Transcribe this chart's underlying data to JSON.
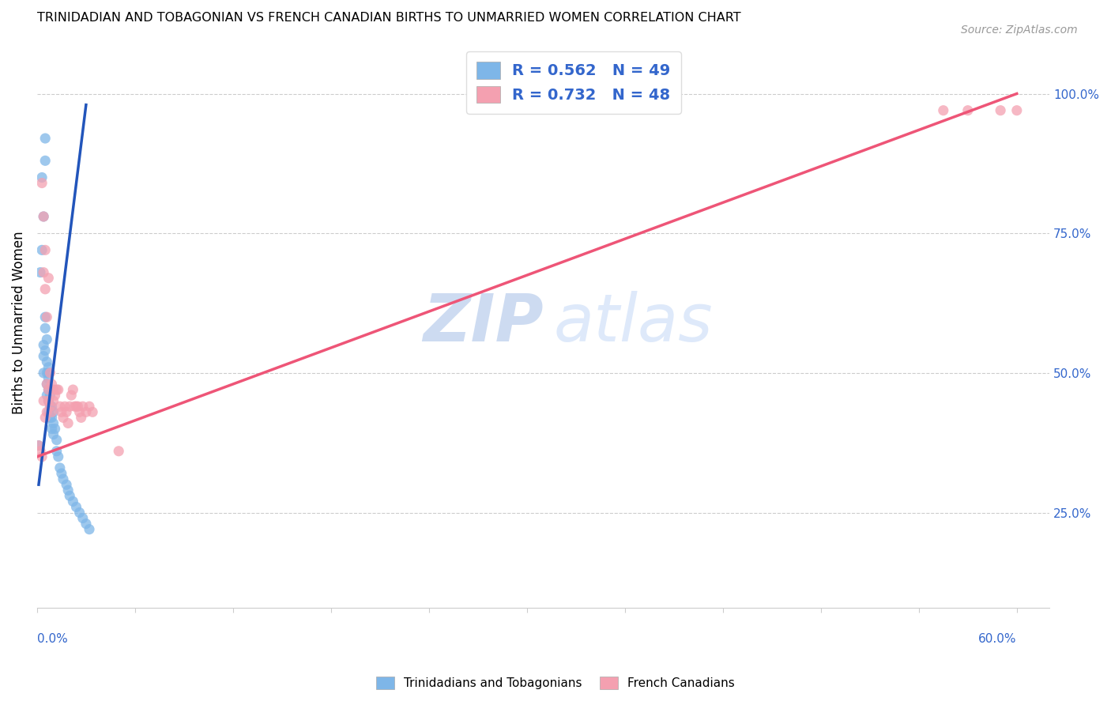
{
  "title": "TRINIDADIAN AND TOBAGONIAN VS FRENCH CANADIAN BIRTHS TO UNMARRIED WOMEN CORRELATION CHART",
  "source": "Source: ZipAtlas.com",
  "ylabel": "Births to Unmarried Women",
  "right_yticks": [
    "100.0%",
    "75.0%",
    "50.0%",
    "25.0%"
  ],
  "right_ytick_vals": [
    1.0,
    0.75,
    0.5,
    0.25
  ],
  "legend_line1": "R = 0.562   N = 49",
  "legend_line2": "R = 0.732   N = 48",
  "legend_label1": "Trinidadians and Tobagonians",
  "legend_label2": "French Canadians",
  "blue_color": "#7EB6E8",
  "pink_color": "#F4A0B0",
  "blue_scatter_x": [
    0.001,
    0.002,
    0.003,
    0.003,
    0.004,
    0.004,
    0.004,
    0.004,
    0.005,
    0.005,
    0.005,
    0.005,
    0.005,
    0.006,
    0.006,
    0.006,
    0.006,
    0.006,
    0.007,
    0.007,
    0.007,
    0.007,
    0.007,
    0.007,
    0.008,
    0.008,
    0.008,
    0.009,
    0.009,
    0.009,
    0.01,
    0.01,
    0.01,
    0.011,
    0.012,
    0.012,
    0.013,
    0.014,
    0.015,
    0.016,
    0.018,
    0.019,
    0.02,
    0.022,
    0.024,
    0.026,
    0.028,
    0.03,
    0.032
  ],
  "blue_scatter_y": [
    0.37,
    0.68,
    0.72,
    0.85,
    0.78,
    0.55,
    0.53,
    0.5,
    0.92,
    0.88,
    0.6,
    0.58,
    0.54,
    0.56,
    0.52,
    0.5,
    0.48,
    0.46,
    0.51,
    0.5,
    0.49,
    0.47,
    0.45,
    0.43,
    0.46,
    0.44,
    0.42,
    0.44,
    0.42,
    0.4,
    0.43,
    0.41,
    0.39,
    0.4,
    0.38,
    0.36,
    0.35,
    0.33,
    0.32,
    0.31,
    0.3,
    0.29,
    0.28,
    0.27,
    0.26,
    0.25,
    0.24,
    0.23,
    0.22
  ],
  "blue_line_x": [
    0.001,
    0.03
  ],
  "blue_line_y": [
    0.3,
    0.98
  ],
  "pink_scatter_x": [
    0.001,
    0.002,
    0.003,
    0.003,
    0.004,
    0.004,
    0.004,
    0.005,
    0.005,
    0.005,
    0.006,
    0.006,
    0.006,
    0.007,
    0.007,
    0.007,
    0.008,
    0.008,
    0.009,
    0.009,
    0.01,
    0.01,
    0.011,
    0.012,
    0.013,
    0.014,
    0.015,
    0.016,
    0.017,
    0.018,
    0.019,
    0.02,
    0.021,
    0.022,
    0.023,
    0.024,
    0.025,
    0.026,
    0.027,
    0.028,
    0.03,
    0.032,
    0.034,
    0.05,
    0.555,
    0.57,
    0.59,
    0.6
  ],
  "pink_scatter_y": [
    0.37,
    0.36,
    0.35,
    0.84,
    0.78,
    0.68,
    0.45,
    0.72,
    0.42,
    0.65,
    0.6,
    0.48,
    0.43,
    0.67,
    0.47,
    0.45,
    0.5,
    0.44,
    0.48,
    0.43,
    0.47,
    0.45,
    0.46,
    0.47,
    0.47,
    0.44,
    0.43,
    0.42,
    0.44,
    0.43,
    0.41,
    0.44,
    0.46,
    0.47,
    0.44,
    0.44,
    0.44,
    0.43,
    0.42,
    0.44,
    0.43,
    0.44,
    0.43,
    0.36,
    0.97,
    0.97,
    0.97,
    0.97
  ],
  "pink_line_x": [
    0.0,
    0.6
  ],
  "pink_line_y": [
    0.35,
    1.0
  ],
  "xlim": [
    0.0,
    0.62
  ],
  "ylim": [
    0.08,
    1.1
  ],
  "xtick_left_label": "0.0%",
  "xtick_right_label": "60.0%"
}
